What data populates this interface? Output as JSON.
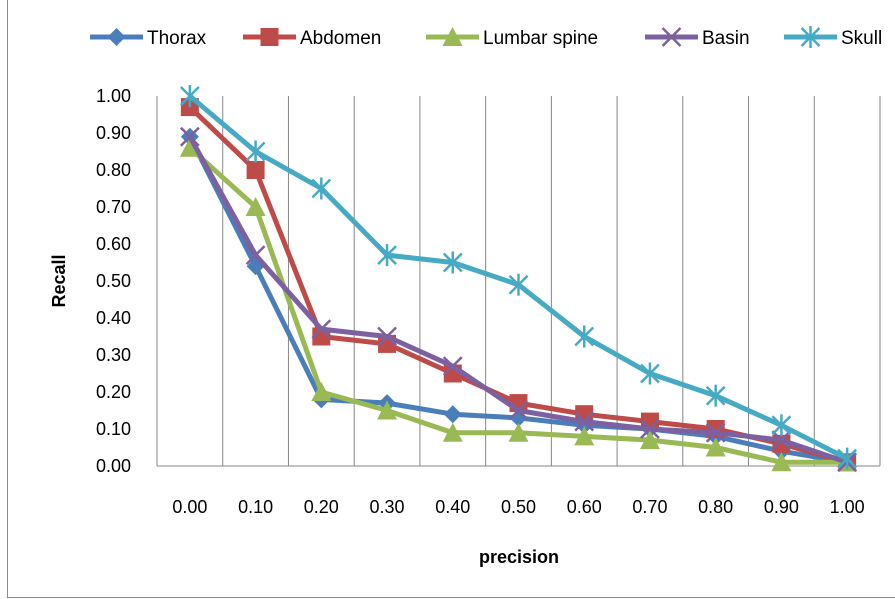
{
  "chart_data": {
    "type": "line",
    "xlabel": "precision",
    "ylabel": "Recall",
    "x": [
      0.0,
      0.1,
      0.2,
      0.3,
      0.4,
      0.5,
      0.6,
      0.7,
      0.8,
      0.9,
      1.0
    ],
    "x_tick_labels": [
      "0.00",
      "0.10",
      "0.20",
      "0.30",
      "0.40",
      "0.50",
      "0.60",
      "0.70",
      "0.80",
      "0.90",
      "1.00"
    ],
    "y_tick_labels": [
      "0.00",
      "0.10",
      "0.20",
      "0.30",
      "0.40",
      "0.50",
      "0.60",
      "0.70",
      "0.80",
      "0.90",
      "1.00"
    ],
    "ylim": [
      0,
      1
    ],
    "grid": "vertical",
    "legend_position": "top",
    "series": [
      {
        "name": "Thorax",
        "color": "#4a7ebb",
        "marker": "diamond",
        "values": [
          0.89,
          0.54,
          0.18,
          0.17,
          0.14,
          0.13,
          0.11,
          0.1,
          0.08,
          0.04,
          0.01
        ]
      },
      {
        "name": "Abdomen",
        "color": "#be4b48",
        "marker": "square",
        "values": [
          0.97,
          0.8,
          0.35,
          0.33,
          0.25,
          0.17,
          0.14,
          0.12,
          0.1,
          0.06,
          0.01
        ]
      },
      {
        "name": "Lumbar spine",
        "color": "#98b954",
        "marker": "triangle",
        "values": [
          0.86,
          0.7,
          0.2,
          0.15,
          0.09,
          0.09,
          0.08,
          0.07,
          0.05,
          0.01,
          0.01
        ]
      },
      {
        "name": "Basin",
        "color": "#7d60a0",
        "marker": "x",
        "values": [
          0.89,
          0.57,
          0.37,
          0.35,
          0.27,
          0.15,
          0.12,
          0.1,
          0.09,
          0.07,
          0.01
        ]
      },
      {
        "name": "Skull",
        "color": "#46aac5",
        "marker": "asterisk",
        "values": [
          1.0,
          0.85,
          0.75,
          0.57,
          0.55,
          0.49,
          0.35,
          0.25,
          0.19,
          0.11,
          0.02
        ]
      }
    ]
  }
}
